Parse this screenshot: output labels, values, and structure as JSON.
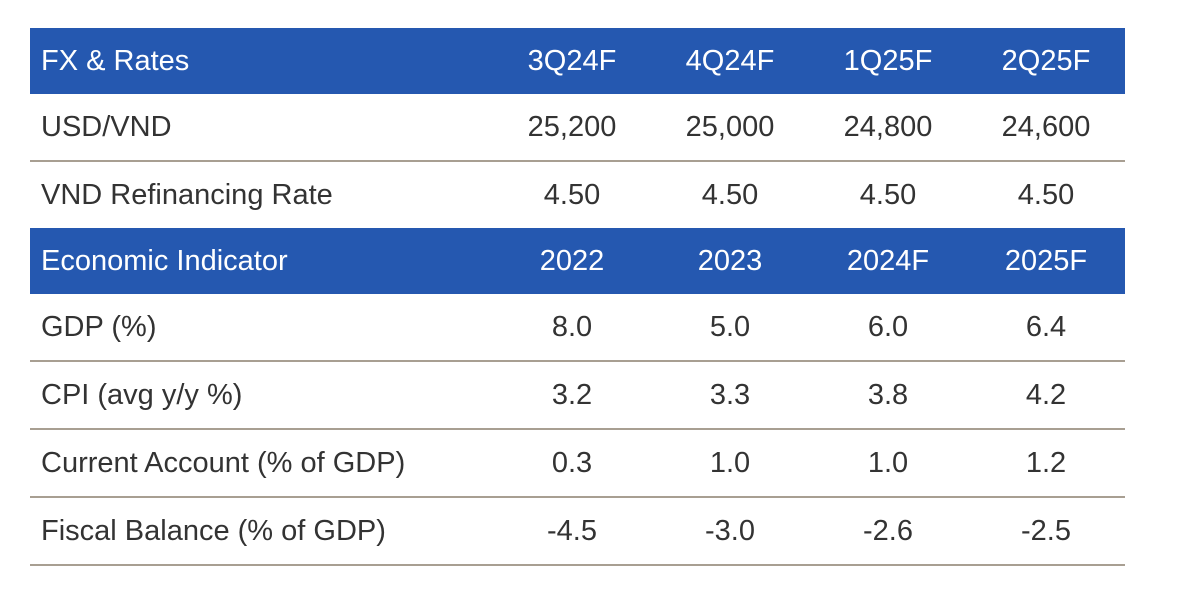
{
  "sections": [
    {
      "header": [
        "FX & Rates",
        "3Q24F",
        "4Q24F",
        "1Q25F",
        "2Q25F"
      ],
      "rows": [
        [
          "USD/VND",
          "25,200",
          "25,000",
          "24,800",
          "24,600"
        ],
        [
          "VND Refinancing Rate",
          "4.50",
          "4.50",
          "4.50",
          "4.50"
        ]
      ]
    },
    {
      "header": [
        "Economic Indicator",
        "2022",
        "2023",
        "2024F",
        "2025F"
      ],
      "rows": [
        [
          "GDP (%)",
          "8.0",
          "5.0",
          "6.0",
          "6.4"
        ],
        [
          "CPI (avg y/y %)",
          "3.2",
          "3.3",
          "3.8",
          "4.2"
        ],
        [
          "Current Account (% of GDP)",
          "0.3",
          "1.0",
          "1.0",
          "1.2"
        ],
        [
          "Fiscal Balance (% of GDP)",
          "-4.5",
          "-3.0",
          "-2.6",
          "-2.5"
        ]
      ]
    }
  ],
  "colors": {
    "header_bg": "#2558b0",
    "divider": "#a89f92"
  }
}
